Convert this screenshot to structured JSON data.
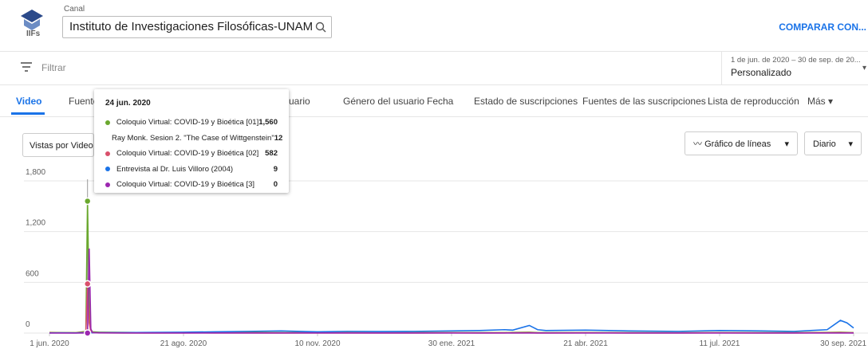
{
  "header": {
    "channel_label": "Canal",
    "channel_name": "Instituto de Investigaciones Filosóficas-UNAM",
    "compare": "COMPARAR CON..."
  },
  "filter": {
    "label": "Filtrar",
    "date_range": "1 de jun. de 2020 – 30 de sep. de 20...",
    "period": "Personalizado"
  },
  "tabs": [
    "Video",
    "Fuente",
    "suario",
    "Género del usuario",
    "Fecha",
    "Estado de suscripciones",
    "Fuentes de las suscripciones",
    "Lista de reproducción",
    "Más"
  ],
  "controls": {
    "metric": "Vistas por Video",
    "chart_kind": "Gráfico de líneas",
    "interval": "Diario"
  },
  "tooltip": {
    "date": "24 jun. 2020",
    "values": [
      {
        "value": 1560,
        "label": "1,560"
      },
      12,
      582,
      9,
      0
    ]
  },
  "chart_data": {
    "type": "line",
    "x": [
      0,
      8,
      16,
      22,
      23,
      24,
      25,
      26,
      30,
      45,
      60,
      81,
      100,
      120,
      140,
      162,
      180,
      200,
      220,
      243,
      260,
      275,
      280,
      290,
      295,
      300,
      324,
      350,
      380,
      405,
      430,
      450,
      470,
      478,
      482,
      486
    ],
    "xlim": [
      0,
      486
    ],
    "xticks": [
      {
        "value": 0,
        "label": "1 jun. 2020"
      },
      {
        "value": 81,
        "label": "21 ago. 2020"
      },
      {
        "value": 162,
        "label": "10 nov. 2020"
      },
      {
        "value": 243,
        "label": "30 ene. 2021"
      },
      {
        "value": 324,
        "label": "21 abr. 2021"
      },
      {
        "value": 405,
        "label": "11 jul. 2021"
      },
      {
        "value": 486,
        "label": "30 sep. 2021"
      }
    ],
    "ylim": [
      0,
      1800
    ],
    "yticks": [
      0,
      600,
      {
        "value": 1200,
        "label": "1,200"
      },
      {
        "value": 1800,
        "label": "1,800"
      }
    ],
    "grid": true,
    "series": [
      {
        "name": "Coloquio Virtual: COVID-19 y Bioética [01]",
        "color": "#6aa82e",
        "values": [
          8,
          5,
          5,
          20,
          1560,
          300,
          40,
          15,
          10,
          8,
          6,
          5,
          6,
          8,
          5,
          6,
          5,
          4,
          6,
          5,
          6,
          5,
          8,
          10,
          6,
          5,
          6,
          5,
          4,
          6,
          5,
          5,
          8,
          10,
          8,
          6
        ]
      },
      {
        "name": "Ray Monk. Sesion 2. \"The Case of Wittgenstein\"",
        "color": "#d4a017",
        "values": [
          4,
          3,
          3,
          5,
          12,
          5,
          3,
          3,
          3,
          2,
          2,
          3,
          2,
          3,
          2,
          2,
          3,
          2,
          2,
          3,
          2,
          3,
          2,
          3,
          2,
          2,
          3,
          2,
          2,
          3,
          2,
          2,
          3,
          4,
          3,
          3
        ]
      },
      {
        "name": "Coloquio Virtual: COVID-19 y Bioética [02]",
        "color": "#d9506b",
        "values": [
          3,
          2,
          2,
          10,
          582,
          120,
          20,
          5,
          4,
          3,
          2,
          2,
          3,
          2,
          2,
          3,
          2,
          2,
          2,
          3,
          2,
          2,
          3,
          4,
          2,
          2,
          3,
          2,
          2,
          3,
          2,
          2,
          3,
          4,
          3,
          3
        ]
      },
      {
        "name": "Entrevista al Dr. Luis Villoro (2004)",
        "color": "#1a73e8",
        "values": [
          2,
          3,
          2,
          4,
          9,
          4,
          3,
          3,
          4,
          6,
          8,
          10,
          15,
          20,
          25,
          15,
          20,
          18,
          20,
          25,
          30,
          40,
          35,
          90,
          40,
          30,
          35,
          25,
          20,
          30,
          25,
          20,
          40,
          150,
          120,
          60
        ]
      },
      {
        "name": "Coloquio Virtual: COVID-19 y Bioética [3]",
        "color": "#9c27b0",
        "values": [
          0,
          0,
          0,
          0,
          0,
          1000,
          50,
          5,
          2,
          1,
          1,
          1,
          1,
          1,
          1,
          1,
          1,
          1,
          1,
          1,
          1,
          1,
          1,
          1,
          1,
          1,
          1,
          1,
          1,
          1,
          1,
          1,
          1,
          1,
          1,
          1
        ]
      }
    ]
  }
}
